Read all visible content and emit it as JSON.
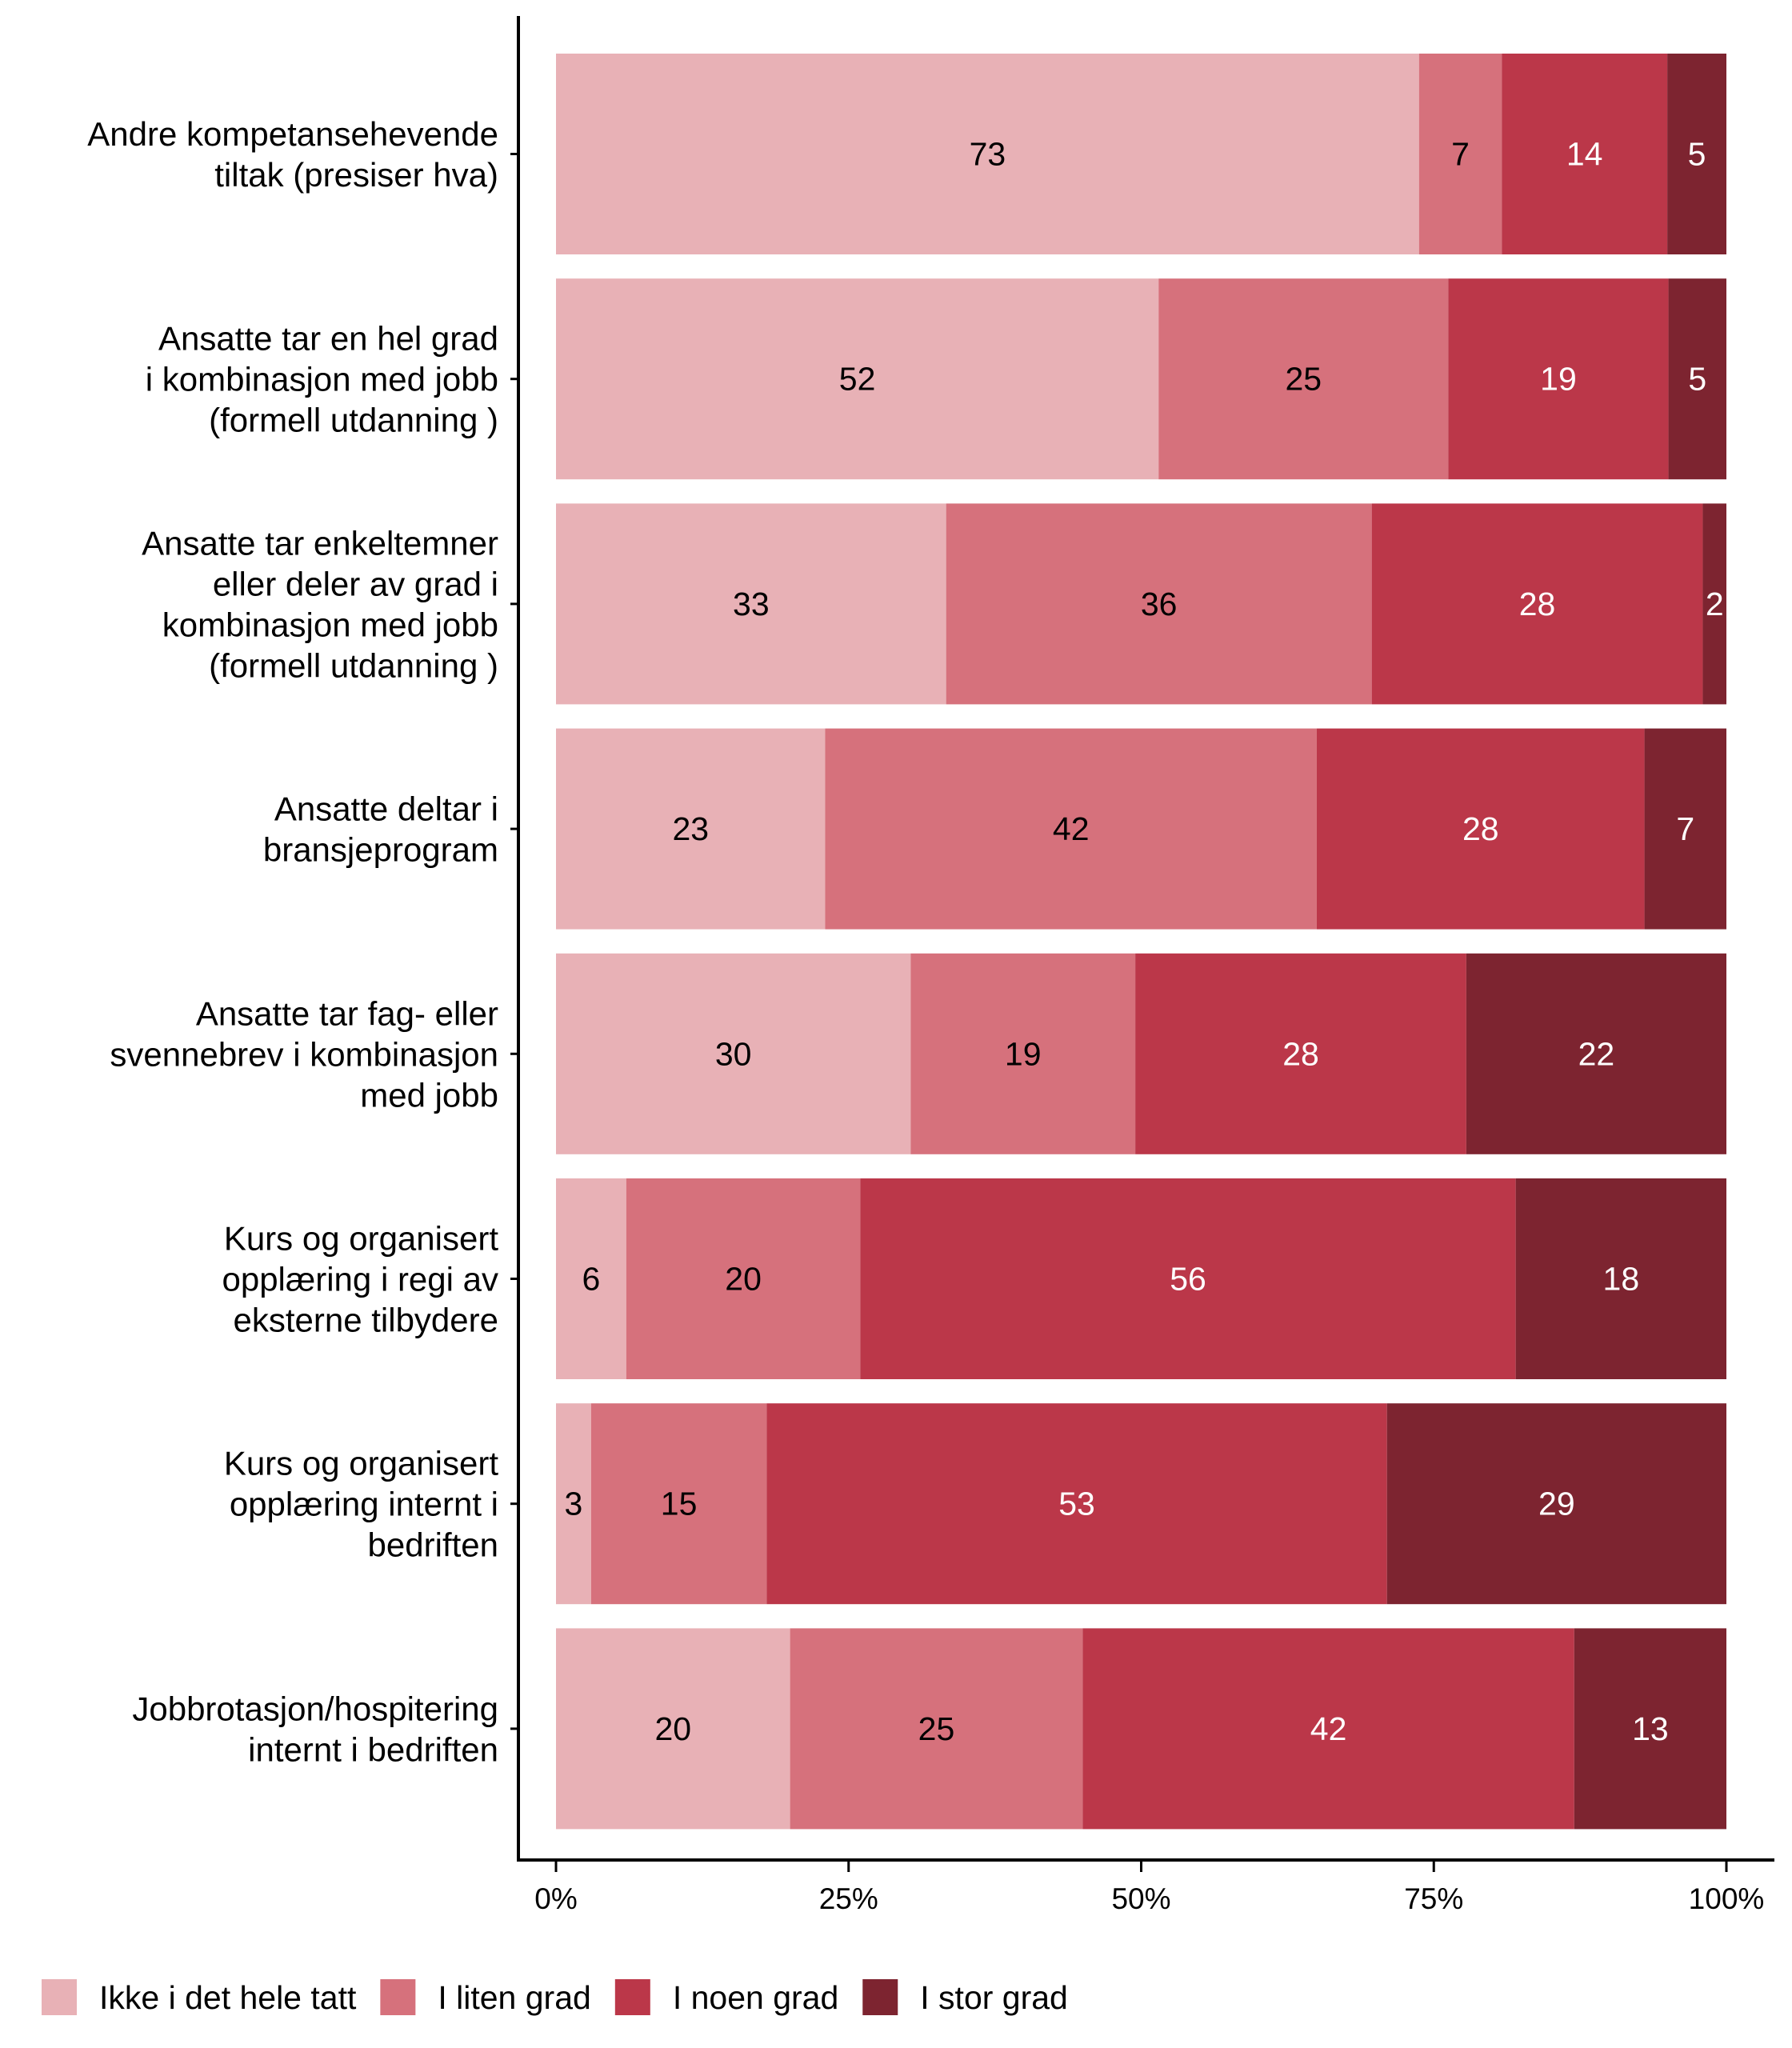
{
  "chart_data": {
    "type": "bar",
    "orientation": "horizontal",
    "stacked": "percent",
    "title": "",
    "xlabel": "",
    "ylabel": "",
    "xlim": [
      0,
      100
    ],
    "x_ticks": [
      "0%",
      "25%",
      "50%",
      "75%",
      "100%"
    ],
    "categories": [
      [
        "Andre kompetansehevende",
        "tiltak (presiser hva)"
      ],
      [
        "Ansatte tar en hel grad",
        "i kombinasjon med jobb",
        "(formell utdanning )"
      ],
      [
        "Ansatte tar enkeltemner",
        "eller deler av grad i",
        "kombinasjon med jobb",
        "(formell utdanning )"
      ],
      [
        "Ansatte deltar i",
        "bransjeprogram"
      ],
      [
        "Ansatte tar fag- eller",
        "svennebrev i kombinasjon",
        "med jobb"
      ],
      [
        "Kurs og organisert",
        "opplæring i regi av",
        "eksterne tilbydere"
      ],
      [
        "Kurs og organisert",
        "opplæring internt i",
        "bedriften"
      ],
      [
        "Jobbrotasjon/hospitering",
        "internt i bedriften"
      ]
    ],
    "series": [
      {
        "name": "Ikke i det hele tatt",
        "color": "#E8B1B6",
        "label_color": "#000000",
        "values": [
          73,
          52,
          33,
          23,
          30,
          6,
          3,
          20
        ]
      },
      {
        "name": "I liten grad",
        "color": "#D6717C",
        "label_color": "#000000",
        "values": [
          7,
          25,
          36,
          42,
          19,
          20,
          15,
          25
        ]
      },
      {
        "name": "I noen grad",
        "color": "#BB3749",
        "label_color": "#FFFFFF",
        "values": [
          14,
          19,
          28,
          28,
          28,
          56,
          53,
          42
        ]
      },
      {
        "name": "I stor grad",
        "color": "#7D2430",
        "label_color": "#FFFFFF",
        "values": [
          5,
          5,
          2,
          7,
          22,
          18,
          29,
          13
        ]
      }
    ],
    "legend_position": "bottom-left",
    "grid": false
  }
}
